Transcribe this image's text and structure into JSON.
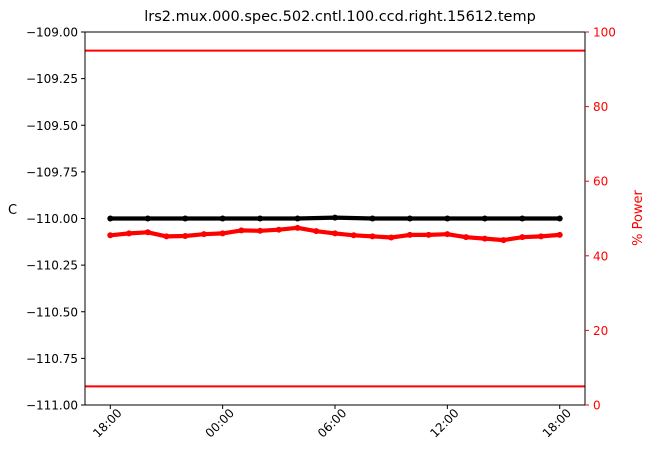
{
  "chart_data": {
    "type": "line",
    "title": "lrs2.mux.000.spec.502.cntl.100.ccd.right.15612.temp",
    "xlabel": "",
    "ylabel": "C",
    "y2label": "% Power",
    "x_ticks": [
      "18:00",
      "00:00",
      "06:00",
      "12:00",
      "18:00"
    ],
    "x_tick_hours": [
      0,
      6,
      12,
      18,
      24
    ],
    "xlim_hours": [
      -1.35,
      25.35
    ],
    "ylim": [
      -111.0,
      -109.0
    ],
    "y_ticks": [
      -109.0,
      -109.25,
      -109.5,
      -109.75,
      -110.0,
      -110.25,
      -110.5,
      -110.75,
      -111.0
    ],
    "y_tick_labels": [
      "−109.00",
      "−109.25",
      "−109.50",
      "−109.75",
      "−110.00",
      "−110.25",
      "−110.50",
      "−110.75",
      "−111.00"
    ],
    "y2lim": [
      0,
      100
    ],
    "y2_ticks": [
      0,
      20,
      40,
      60,
      80,
      100
    ],
    "y2_tick_labels": [
      "0",
      "20",
      "40",
      "60",
      "80",
      "100"
    ],
    "grid": false,
    "series": [
      {
        "axis": "left",
        "style": "line",
        "color": "#00aa00",
        "x": [
          0,
          24
        ],
        "y": [
          -109.999,
          -109.999
        ]
      },
      {
        "axis": "left",
        "style": "dots",
        "color": "#000000",
        "x": [
          0,
          2,
          4,
          6,
          8,
          10,
          12,
          14,
          16,
          18,
          20,
          22,
          24
        ],
        "y": [
          -110.0,
          -110.0,
          -110.0,
          -110.0,
          -110.0,
          -110.0,
          -109.995,
          -110.0,
          -110.0,
          -110.0,
          -110.0,
          -110.0,
          -110.0
        ]
      },
      {
        "axis": "right",
        "style": "dots",
        "color": "#ff0000",
        "x": [
          0,
          1,
          2,
          3,
          4,
          5,
          6,
          7,
          8,
          9,
          10,
          11,
          12,
          13,
          14,
          15,
          16,
          17,
          18,
          19,
          20,
          21,
          22,
          23,
          24
        ],
        "y": [
          45.5,
          46.0,
          46.3,
          45.2,
          45.3,
          45.8,
          46.0,
          46.8,
          46.7,
          47.0,
          47.5,
          46.6,
          46.0,
          45.5,
          45.2,
          44.9,
          45.6,
          45.6,
          45.8,
          45.0,
          44.6,
          44.2,
          45.0,
          45.2,
          45.6
        ]
      },
      {
        "axis": "right",
        "style": "line",
        "color": "#ff0000",
        "x": [
          -1.35,
          25.35
        ],
        "y": [
          95,
          95
        ]
      },
      {
        "axis": "right",
        "style": "line",
        "color": "#ff0000",
        "x": [
          -1.35,
          25.35
        ],
        "y": [
          5,
          5
        ]
      }
    ]
  }
}
